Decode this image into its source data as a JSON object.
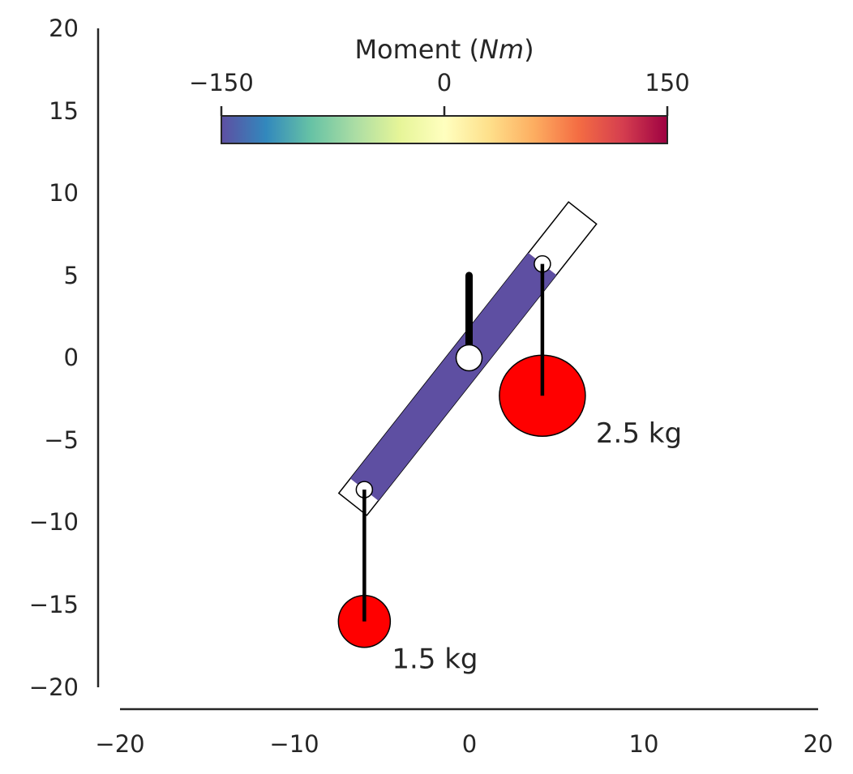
{
  "chart_data": {
    "type": "diagram",
    "xlim": [
      -20,
      20
    ],
    "ylim": [
      -20,
      20
    ],
    "x_ticks": [
      "−20",
      "−10",
      "0",
      "10",
      "20"
    ],
    "y_ticks": [
      "20",
      "15",
      "10",
      "5",
      "0",
      "−5",
      "−10",
      "−15",
      "−20"
    ],
    "colorbar": {
      "title_text": "Moment (",
      "title_italic": "Nm",
      "title_close": ")",
      "ticks": [
        "−150",
        "0",
        "150"
      ],
      "range": [
        -150,
        150
      ],
      "colormap": "Spectral_r",
      "colors": [
        "#5e4fa2",
        "#3288bd",
        "#66c2a5",
        "#abdda4",
        "#e6f598",
        "#ffffbf",
        "#fee08b",
        "#fdae61",
        "#f46d43",
        "#d53e4f",
        "#9e0142"
      ]
    },
    "bar": {
      "end_a": [
        -6,
        -8
      ],
      "end_b": [
        4.2,
        5.7
      ],
      "pivot": [
        0,
        0
      ]
    },
    "support_post": {
      "x": 0,
      "y_bottom": 0,
      "y_top": 5
    },
    "masses": [
      {
        "label": "2.5 kg",
        "mass": 2.5,
        "attach": [
          4.2,
          5.7
        ],
        "center": [
          4.2,
          -2.3
        ]
      },
      {
        "label": "1.5 kg",
        "mass": 1.5,
        "attach": [
          -6,
          -8
        ],
        "center": [
          -6,
          -16
        ]
      }
    ],
    "mass_color": "#ff0000"
  }
}
